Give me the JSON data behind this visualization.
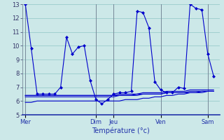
{
  "background_color": "#cce8e8",
  "grid_color": "#99cccc",
  "line_color": "#0000cc",
  "ylim": [
    5,
    13
  ],
  "yticks": [
    5,
    6,
    7,
    8,
    9,
    10,
    11,
    12,
    13
  ],
  "xlabel": "Température (°c)",
  "day_labels": [
    "Mer",
    "Dim",
    "Jeu",
    "Ven",
    "Sam"
  ],
  "day_x": [
    0,
    12,
    15,
    23,
    31
  ],
  "xlim": [
    -0.5,
    33
  ],
  "line1": [
    13.0,
    9.8,
    6.5,
    6.5,
    6.5,
    6.5,
    7.0,
    10.6,
    9.4,
    9.9,
    10.0,
    7.5,
    6.1,
    5.8,
    6.1,
    6.5,
    6.6,
    6.6,
    6.7,
    12.5,
    12.4,
    11.3,
    7.4,
    6.8,
    6.6,
    6.6,
    7.0,
    6.9,
    13.0,
    12.7,
    12.6,
    9.4,
    7.8
  ],
  "line2": [
    6.4,
    6.4,
    6.4,
    6.4,
    6.4,
    6.4,
    6.4,
    6.4,
    6.4,
    6.4,
    6.4,
    6.4,
    6.4,
    6.4,
    6.4,
    6.4,
    6.5,
    6.5,
    6.5,
    6.5,
    6.6,
    6.6,
    6.6,
    6.6,
    6.7,
    6.7,
    6.7,
    6.7,
    6.8,
    6.8,
    6.8,
    6.8,
    6.8
  ],
  "line3": [
    6.4,
    6.4,
    6.4,
    6.4,
    6.4,
    6.4,
    6.4,
    6.4,
    6.4,
    6.4,
    6.4,
    6.4,
    6.4,
    6.4,
    6.4,
    6.4,
    6.4,
    6.4,
    6.4,
    6.5,
    6.5,
    6.5,
    6.5,
    6.5,
    6.6,
    6.6,
    6.6,
    6.6,
    6.7,
    6.7,
    6.7,
    6.7,
    6.7
  ],
  "line4": [
    6.3,
    6.3,
    6.3,
    6.3,
    6.3,
    6.3,
    6.3,
    6.3,
    6.3,
    6.3,
    6.3,
    6.3,
    6.3,
    6.3,
    6.3,
    6.3,
    6.4,
    6.4,
    6.4,
    6.4,
    6.5,
    6.5,
    6.5,
    6.5,
    6.6,
    6.6,
    6.6,
    6.6,
    6.6,
    6.6,
    6.7,
    6.7,
    6.7
  ],
  "line5": [
    5.9,
    5.9,
    6.0,
    6.0,
    6.0,
    6.0,
    6.0,
    6.0,
    6.0,
    6.0,
    6.0,
    6.0,
    6.0,
    6.0,
    6.0,
    6.0,
    6.0,
    6.1,
    6.1,
    6.1,
    6.2,
    6.2,
    6.3,
    6.3,
    6.4,
    6.4,
    6.5,
    6.5,
    6.6,
    6.6,
    6.6,
    6.7,
    6.7
  ]
}
